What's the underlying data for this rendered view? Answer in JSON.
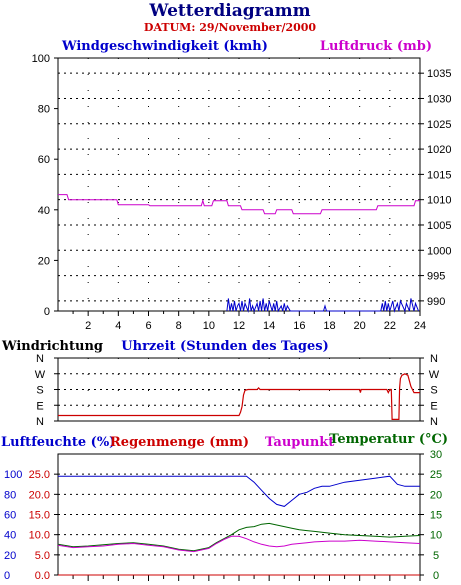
{
  "header": {
    "title": "Wetterdiagramm",
    "date": "DATUM: 29/November/2000"
  },
  "colors": {
    "title": "#000080",
    "date": "#cc0000",
    "wind_speed": "#0000cc",
    "pressure": "#cc00cc",
    "wind_dir": "#cc0000",
    "humidity": "#0000cc",
    "rain": "#cc0000",
    "dewpoint": "#cc00cc",
    "temperature": "#006600"
  },
  "chart_data": [
    {
      "type": "line",
      "xlabel": "Uhrzeit (Stunden des Tages)",
      "xlim": [
        0,
        24
      ],
      "x_ticks": [
        "2",
        "4",
        "6",
        "8",
        "10",
        "12",
        "14",
        "16",
        "18",
        "20",
        "22",
        "24"
      ],
      "ylabel_left": "Windgeschwindigkeit (kmh)",
      "ylim_left": [
        0,
        100
      ],
      "y_ticks_left": [
        "0",
        "20",
        "40",
        "60",
        "80",
        "100"
      ],
      "ylabel_right": "Luftdruck (mb)",
      "ylim_right": [
        988,
        1038
      ],
      "y_ticks_right": [
        "990",
        "995",
        "1000",
        "1005",
        "1010",
        "1015",
        "1020",
        "1025",
        "1030",
        "1035"
      ],
      "series": [
        {
          "name": "Luftdruck (mb)",
          "axis": "right",
          "x": [
            0,
            0.6,
            0.7,
            3.9,
            4.0,
            6.0,
            6.1,
            9.5,
            9.6,
            9.7,
            9.8,
            10.2,
            10.3,
            10.7,
            11.2,
            11.3,
            12.1,
            12.2,
            13.6,
            13.7,
            14.4,
            14.5,
            14.9,
            15.0,
            15.5,
            15.6,
            17.4,
            17.5,
            19.2,
            19.3,
            21.1,
            21.2,
            23.6,
            23.7,
            24.0
          ],
          "values": [
            1011,
            1011,
            1010,
            1010,
            1009,
            1009,
            1008.8,
            1008.8,
            1009.8,
            1008.8,
            1008.8,
            1008.8,
            1009.8,
            1009.8,
            1009.8,
            1008.8,
            1008.8,
            1008,
            1008,
            1007.2,
            1007.2,
            1008,
            1008,
            1008,
            1008,
            1007.2,
            1007.2,
            1008,
            1008,
            1008,
            1008,
            1008.8,
            1008.8,
            1009.8,
            1009.8
          ]
        },
        {
          "name": "Windgeschwindigkeit (kmh)",
          "axis": "left",
          "x": [
            11.2,
            11.3,
            11.4,
            11.5,
            11.6,
            11.7,
            11.8,
            11.9,
            12.0,
            12.1,
            12.2,
            12.3,
            12.4,
            12.6,
            12.7,
            12.8,
            12.9,
            13.0,
            13.2,
            13.3,
            13.4,
            13.5,
            13.6,
            13.7,
            13.8,
            13.9,
            14.0,
            14.2,
            14.3,
            14.4,
            14.5,
            14.6,
            14.8,
            14.9,
            15.0,
            15.1,
            15.2,
            15.4,
            17.6,
            17.7,
            17.8,
            21.4,
            21.5,
            21.6,
            21.7,
            21.8,
            21.9,
            22.0,
            22.2,
            22.3,
            22.5,
            22.6,
            22.7,
            23.0,
            23.1,
            23.3,
            23.4,
            23.6,
            23.7,
            23.9
          ],
          "values": [
            0,
            5,
            0,
            3,
            0,
            4,
            0,
            2,
            3,
            0,
            4,
            0,
            3,
            0,
            5,
            0,
            2,
            0,
            3,
            0,
            4,
            0,
            5,
            0,
            3,
            0,
            4,
            0,
            3,
            0,
            4,
            0,
            2,
            0,
            3,
            0,
            2,
            0,
            0,
            2,
            0,
            0,
            3,
            0,
            4,
            0,
            3,
            0,
            4,
            0,
            3,
            0,
            4,
            0,
            3,
            0,
            5,
            0,
            3,
            0
          ]
        }
      ]
    },
    {
      "type": "line",
      "ylabel_left": "Windrichtung",
      "categories": [
        "N",
        "W",
        "S",
        "E",
        "N"
      ],
      "xlim": [
        0,
        24
      ],
      "series": [
        {
          "name": "Windrichtung",
          "x": [
            0,
            12.0,
            12.1,
            12.2,
            12.3,
            12.4,
            12.6,
            13.2,
            13.3,
            13.4,
            13.5,
            20.0,
            20.05,
            20.1,
            20.2,
            21.8,
            21.9,
            22.0,
            22.1,
            22.15,
            22.2,
            22.6,
            22.65,
            22.7,
            22.8,
            23.0,
            23.2,
            23.4,
            23.6,
            23.7,
            24.0
          ],
          "values": [
            0.35,
            0.35,
            0.55,
            0.9,
            1.65,
            1.95,
            2.0,
            2.0,
            2.1,
            2.0,
            2.0,
            2.0,
            1.8,
            2.0,
            2.0,
            2.0,
            1.8,
            2.0,
            2.0,
            0.1,
            0.1,
            0.1,
            2.1,
            2.7,
            2.9,
            3.0,
            2.9,
            2.2,
            1.8,
            1.8,
            1.8
          ]
        }
      ]
    },
    {
      "type": "line",
      "xlim": [
        0,
        24
      ],
      "ylabel_left_outer": "Luftfeuchte (%)",
      "ylim_left_outer": [
        0,
        120
      ],
      "y_ticks_left_outer": [
        "0",
        "20",
        "40",
        "60",
        "80",
        "100"
      ],
      "ylabel_left_inner": "Regenmenge (mm)",
      "ylim_left_inner": [
        0,
        30
      ],
      "y_ticks_left_inner": [
        "0.0",
        "5.0",
        "10.0",
        "15.0",
        "20.0",
        "25.0"
      ],
      "ylabel_right": "Temperatur (°C)",
      "ylim_right": [
        0,
        30
      ],
      "y_ticks_right": [
        "0",
        "5",
        "10",
        "15",
        "20",
        "25",
        "30"
      ],
      "extra_label": "Taupunkt",
      "series": [
        {
          "name": "Luftfeuchte (%)",
          "axis": "left_outer",
          "x": [
            0,
            4,
            8,
            10,
            12.5,
            13.0,
            13.5,
            14.0,
            14.5,
            15.0,
            15.5,
            16.0,
            16.5,
            17.0,
            17.5,
            18.0,
            19.0,
            20.0,
            21.0,
            22.0,
            22.5,
            23.0,
            24.0
          ],
          "values": [
            98,
            98,
            98,
            98,
            98,
            92,
            84,
            76,
            70,
            68,
            74,
            80,
            82,
            86,
            88,
            88,
            92,
            94,
            96,
            98,
            90,
            88,
            88
          ]
        },
        {
          "name": "Regenmenge (mm)",
          "axis": "left_inner",
          "x": [
            0,
            24
          ],
          "values": [
            0,
            0
          ]
        },
        {
          "name": "Temperatur (°C)",
          "axis": "right",
          "x": [
            0,
            1,
            2,
            3,
            4,
            5,
            6,
            7,
            8,
            9,
            10,
            10.5,
            11,
            11.5,
            12,
            12.5,
            13,
            13.5,
            14,
            14.5,
            15,
            15.5,
            16,
            16.5,
            17,
            18,
            19,
            20,
            21,
            22,
            23,
            24
          ],
          "values": [
            7.6,
            7.0,
            7.2,
            7.5,
            7.8,
            8.0,
            7.6,
            7.2,
            6.4,
            6.0,
            6.8,
            8.0,
            9.0,
            10.0,
            11.2,
            11.8,
            12.0,
            12.6,
            12.8,
            12.4,
            12.0,
            11.6,
            11.2,
            11.0,
            10.8,
            10.4,
            10.0,
            9.8,
            9.6,
            9.4,
            9.6,
            9.8
          ]
        },
        {
          "name": "Taupunkt",
          "axis": "right",
          "x": [
            0,
            1,
            2,
            3,
            4,
            5,
            6,
            7,
            8,
            9,
            10,
            10.5,
            11,
            11.5,
            12,
            12.5,
            13,
            13.5,
            14,
            14.5,
            15,
            15.5,
            16,
            16.5,
            17,
            18,
            19,
            20,
            21,
            22,
            23,
            24
          ],
          "values": [
            7.4,
            6.8,
            7.0,
            7.2,
            7.6,
            7.8,
            7.4,
            7.0,
            6.2,
            5.8,
            6.6,
            7.8,
            8.8,
            9.6,
            9.6,
            9.0,
            8.2,
            7.6,
            7.2,
            7.0,
            7.2,
            7.6,
            7.8,
            8.0,
            8.2,
            8.4,
            8.4,
            8.6,
            8.4,
            8.2,
            8.0,
            7.8
          ]
        }
      ]
    }
  ]
}
